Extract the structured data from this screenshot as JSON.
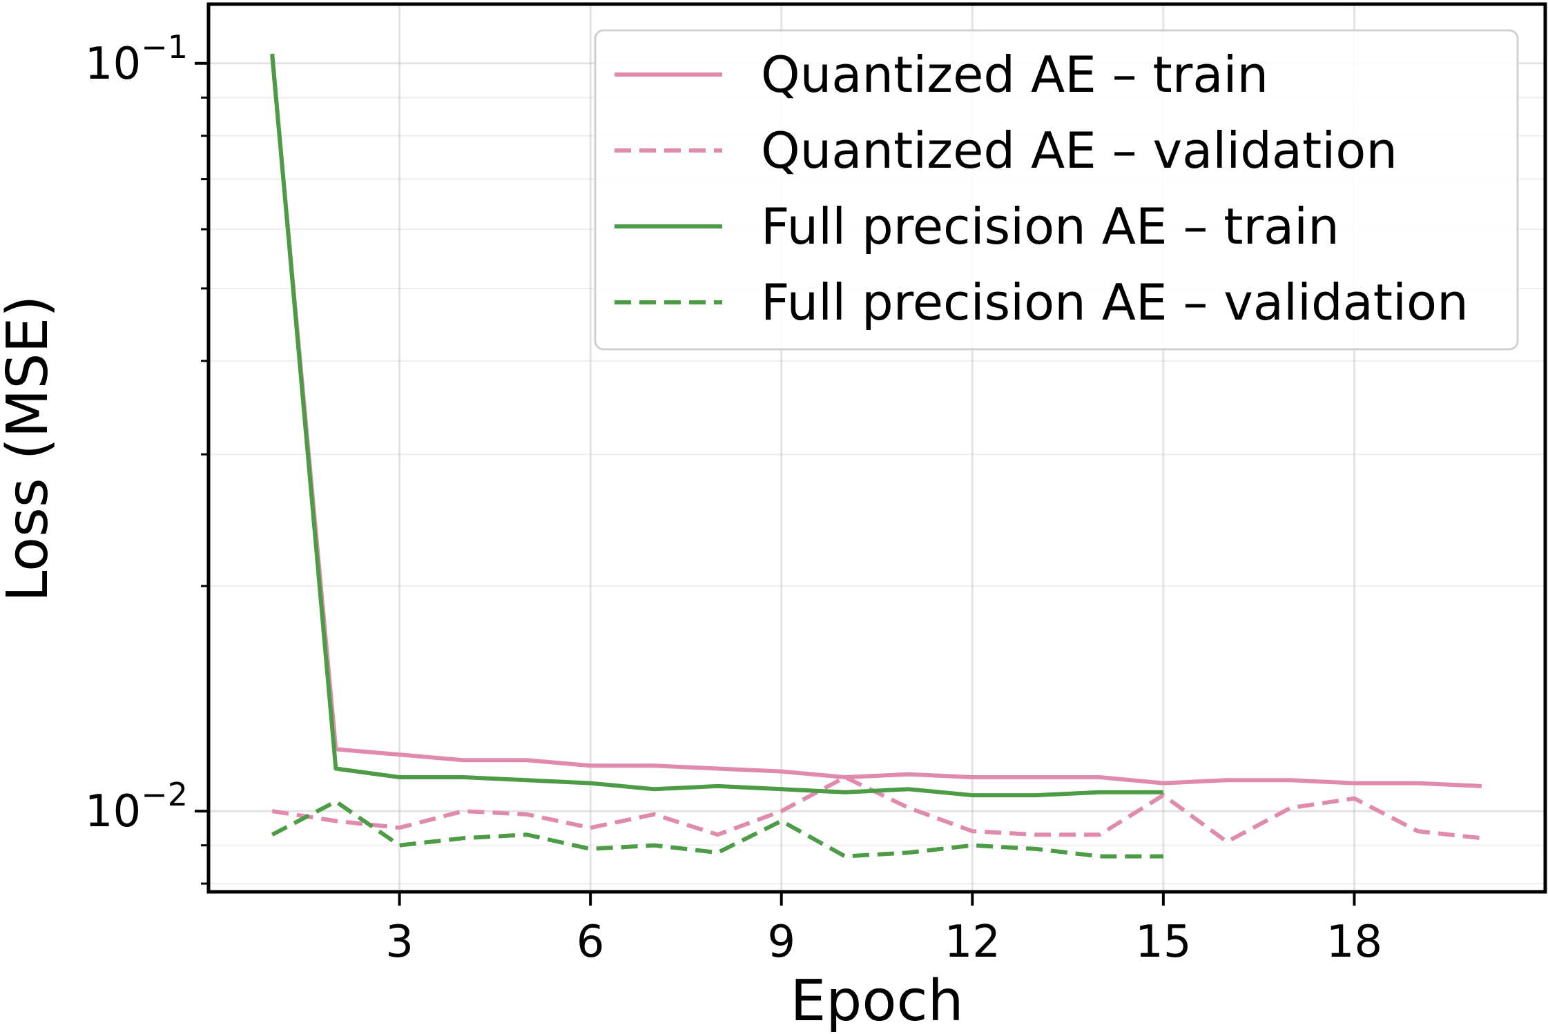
{
  "chart_data": {
    "type": "line",
    "xlabel": "Epoch",
    "ylabel": "Loss (MSE)",
    "x_ticks": [
      3,
      6,
      9,
      12,
      15,
      18
    ],
    "x_tick_labels": [
      "3",
      "6",
      "9",
      "12",
      "15",
      "18"
    ],
    "xlim": [
      0.0,
      21.0
    ],
    "y_scale": "log",
    "ylim": [
      0.0078,
      0.12
    ],
    "y_major_ticks": [
      0.01,
      0.1
    ],
    "y_tick_labels": [
      {
        "base": "10",
        "exp": "−2",
        "value": 0.01
      },
      {
        "base": "10",
        "exp": "−1",
        "value": 0.1
      }
    ],
    "grid": true,
    "legend_position": "top-right",
    "series": [
      {
        "name": "Quantized AE – train",
        "color": "#e08bad",
        "style": "solid",
        "x": [
          1,
          2,
          3,
          4,
          5,
          6,
          7,
          8,
          9,
          10,
          11,
          12,
          13,
          14,
          15,
          16,
          17,
          18,
          19,
          20
        ],
        "values": [
          0.102,
          0.0121,
          0.0119,
          0.0117,
          0.0117,
          0.0115,
          0.0115,
          0.0114,
          0.0113,
          0.0111,
          0.0112,
          0.0111,
          0.0111,
          0.0111,
          0.0109,
          0.011,
          0.011,
          0.0109,
          0.0109,
          0.0108
        ]
      },
      {
        "name": "Quantized AE – validation",
        "color": "#e08bad",
        "style": "dashed",
        "x": [
          1,
          2,
          3,
          4,
          5,
          6,
          7,
          8,
          9,
          10,
          11,
          12,
          13,
          14,
          15,
          16,
          17,
          18,
          19,
          20
        ],
        "values": [
          0.01,
          0.0097,
          0.0095,
          0.01,
          0.0099,
          0.0095,
          0.0099,
          0.0093,
          0.01,
          0.0111,
          0.0101,
          0.0094,
          0.0093,
          0.0093,
          0.0105,
          0.0091,
          0.0101,
          0.0104,
          0.0094,
          0.0092
        ]
      },
      {
        "name": "Full precision AE – train",
        "color": "#4c9c45",
        "style": "solid",
        "x": [
          1,
          2,
          3,
          4,
          5,
          6,
          7,
          8,
          9,
          10,
          11,
          12,
          13,
          14,
          15
        ],
        "values": [
          0.103,
          0.0114,
          0.0111,
          0.0111,
          0.011,
          0.0109,
          0.0107,
          0.0108,
          0.0107,
          0.0106,
          0.0107,
          0.0105,
          0.0105,
          0.0106,
          0.0106
        ]
      },
      {
        "name": "Full precision AE – validation",
        "color": "#4c9c45",
        "style": "dashed",
        "x": [
          1,
          2,
          3,
          4,
          5,
          6,
          7,
          8,
          9,
          10,
          11,
          12,
          13,
          14,
          15
        ],
        "values": [
          0.0093,
          0.0103,
          0.009,
          0.0092,
          0.0093,
          0.0089,
          0.009,
          0.0088,
          0.0097,
          0.0087,
          0.0088,
          0.009,
          0.0089,
          0.0087,
          0.0087
        ]
      }
    ]
  }
}
